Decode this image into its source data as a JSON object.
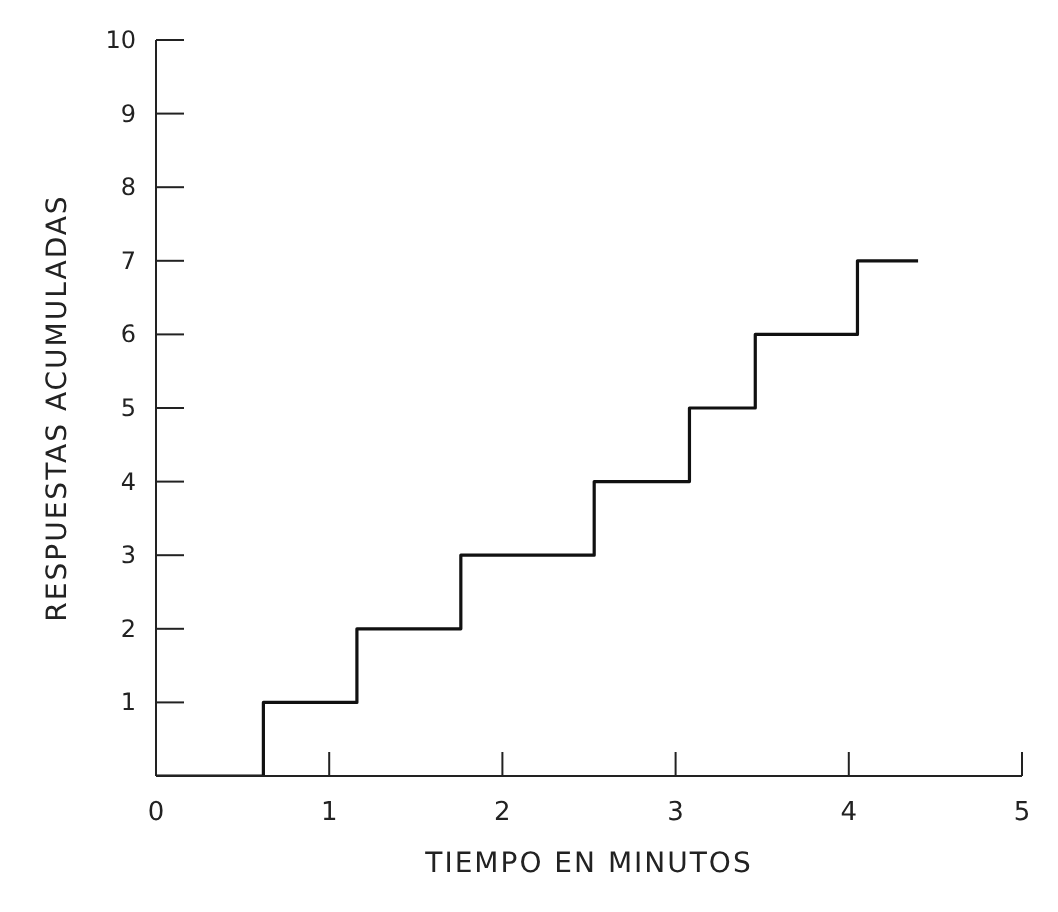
{
  "chart_data": {
    "type": "step",
    "xlabel": "TIEMPO EN MINUTOS",
    "ylabel": "RESPUESTAS ACUMULADAS",
    "x": [
      0,
      0.62,
      1.16,
      1.76,
      2.53,
      3.08,
      3.46,
      4.05,
      4.4
    ],
    "series": [
      {
        "color": "#111111",
        "values": [
          0,
          1,
          2,
          3,
          4,
          5,
          6,
          7,
          7
        ]
      }
    ],
    "xlim": [
      0,
      5
    ],
    "xticks": [
      0,
      1,
      2,
      3,
      4,
      5
    ],
    "ylim": [
      0,
      10
    ],
    "yticks": [
      1,
      2,
      3,
      4,
      5,
      6,
      7,
      8,
      9,
      10
    ],
    "line_style": "solid"
  }
}
